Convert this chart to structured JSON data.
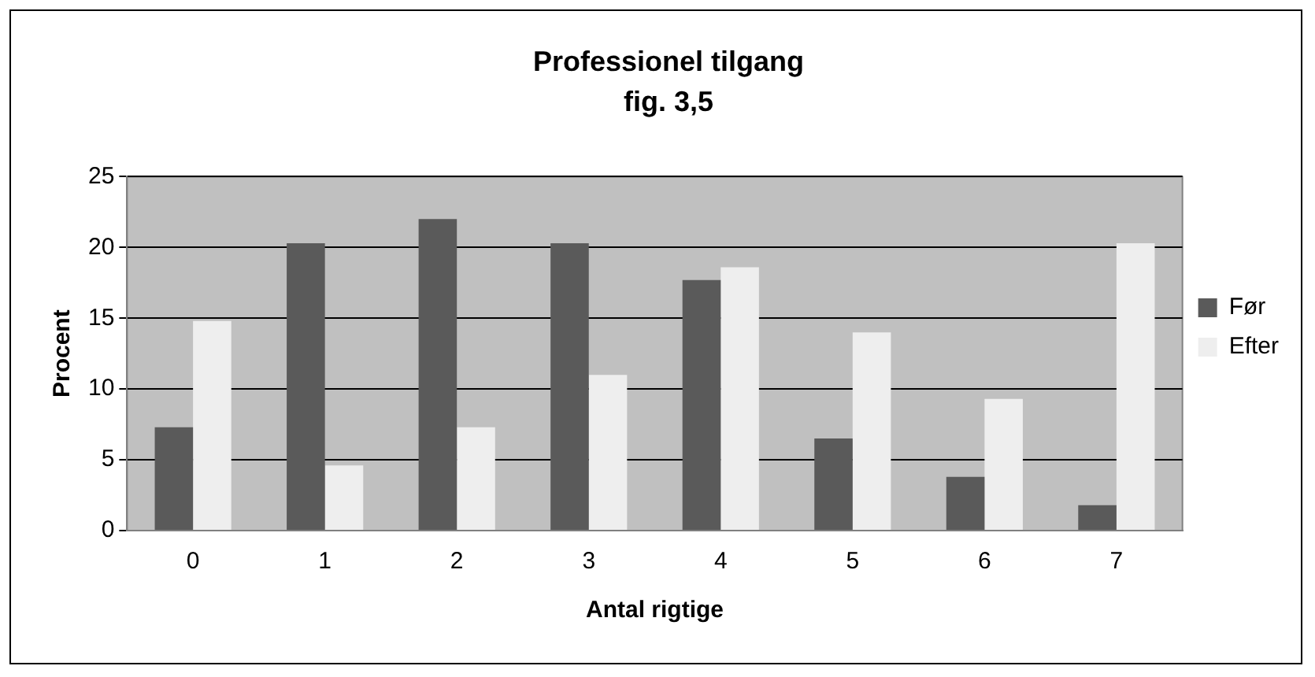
{
  "chart_data": {
    "type": "bar",
    "title": "Professionel tilgang",
    "subtitle": "fig. 3,5",
    "xlabel": "Antal rigtige",
    "ylabel": "Procent",
    "categories": [
      "0",
      "1",
      "2",
      "3",
      "4",
      "5",
      "6",
      "7"
    ],
    "series": [
      {
        "name": "Før",
        "color": "#5a5a5a",
        "values": [
          7.3,
          20.3,
          22.0,
          20.3,
          17.7,
          6.5,
          3.8,
          1.8
        ]
      },
      {
        "name": "Efter",
        "color": "#eeeeee",
        "values": [
          14.8,
          4.6,
          7.3,
          11.0,
          18.6,
          14.0,
          9.3,
          20.3
        ]
      }
    ],
    "ylim": [
      0,
      25
    ],
    "yticks": [
      0,
      5,
      10,
      15,
      20,
      25
    ],
    "grid": "y",
    "legend": "right"
  }
}
